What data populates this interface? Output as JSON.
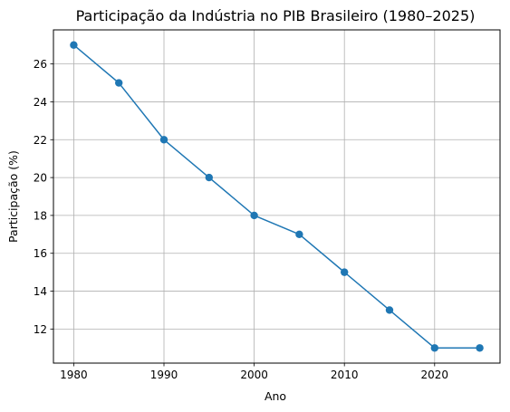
{
  "chart_data": {
    "type": "line",
    "title": "Participação da Indústria no PIB Brasileiro (1980–2025)",
    "xlabel": "Ano",
    "ylabel": "Participação (%)",
    "xlim": [
      1977.75,
      2027.25
    ],
    "ylim": [
      10.2,
      27.8
    ],
    "x_ticks": [
      1980,
      1990,
      2000,
      2010,
      2020
    ],
    "y_ticks": [
      12,
      14,
      16,
      18,
      20,
      22,
      24,
      26
    ],
    "grid": true,
    "marker": "circle",
    "series": [
      {
        "x": [
          1980,
          1985,
          1990,
          1995,
          2000,
          2005,
          2010,
          2015,
          2020,
          2025
        ],
        "values": [
          27,
          25,
          22,
          20,
          18,
          17,
          15,
          13,
          11,
          11
        ],
        "color": "#1f77b4"
      }
    ]
  }
}
